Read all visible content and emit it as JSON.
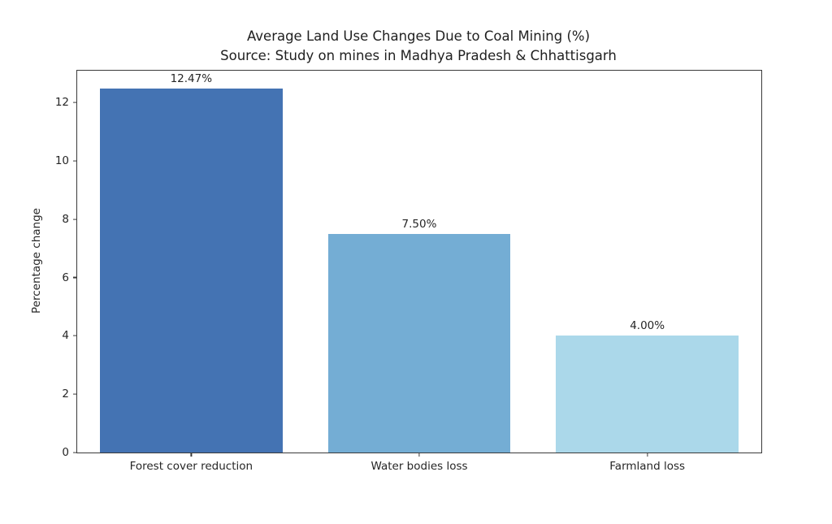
{
  "figure": {
    "background": "#ffffff",
    "text_color": "#262626",
    "spine_color": "#3a3a3a"
  },
  "chart_data": {
    "type": "bar",
    "title": "Average Land Use Changes Due to Coal Mining (%)",
    "subtitle": "Source: Study on mines in Madhya Pradesh & Chhattisgarh",
    "categories": [
      "Forest cover reduction",
      "Water bodies loss",
      "Farmland loss"
    ],
    "values": [
      12.47,
      7.5,
      4.0
    ],
    "value_labels": [
      "12.47%",
      "7.50%",
      "4.00%"
    ],
    "bar_colors": [
      "#4473b3",
      "#74add4",
      "#abd8ea"
    ],
    "xlabel": "",
    "ylabel": "Percentage change",
    "ylim": [
      0,
      13.09
    ],
    "yticks": [
      0,
      2,
      4,
      6,
      8,
      10,
      12
    ],
    "grid": false,
    "legend": null,
    "bar_width_fraction": 0.8
  }
}
